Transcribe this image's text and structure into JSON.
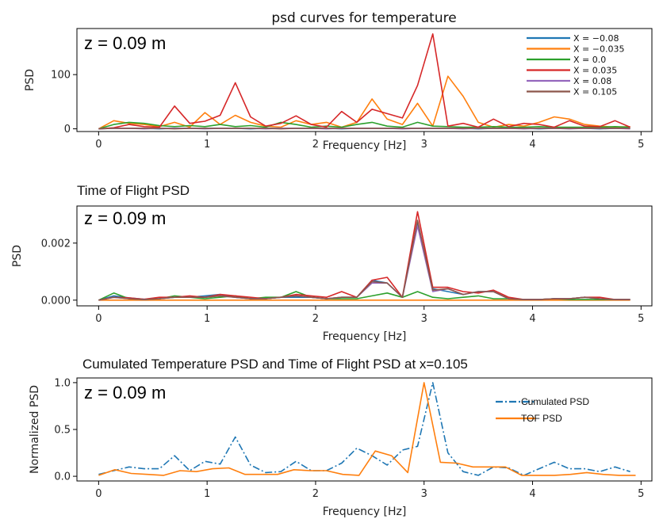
{
  "chart_data": [
    {
      "type": "line",
      "title": "psd curves for temperature",
      "annotation": "z = 0.09 m",
      "xlabel": "Frequency [Hz]",
      "ylabel": "PSD",
      "xlim": [
        -0.2,
        5.1
      ],
      "ylim": [
        -5,
        185
      ],
      "xticks": [
        0,
        1,
        2,
        3,
        4,
        5
      ],
      "yticks": [
        0,
        100
      ],
      "legend_position": "top-right",
      "x": [
        0,
        0.14,
        0.28,
        0.42,
        0.56,
        0.7,
        0.84,
        0.98,
        1.12,
        1.26,
        1.4,
        1.54,
        1.68,
        1.82,
        1.96,
        2.1,
        2.24,
        2.38,
        2.52,
        2.66,
        2.8,
        2.94,
        3.08,
        3.22,
        3.36,
        3.5,
        3.64,
        3.78,
        3.92,
        4.06,
        4.2,
        4.34,
        4.48,
        4.62,
        4.76,
        4.9
      ],
      "series": [
        {
          "name": "X = −0.08",
          "color": "#1f77b4",
          "values": [
            0,
            1,
            1,
            1,
            0,
            1,
            1,
            1,
            1,
            1,
            0,
            1,
            1,
            1,
            1,
            1,
            0,
            1,
            1,
            1,
            1,
            1,
            1,
            1,
            1,
            0,
            1,
            1,
            1,
            0,
            1,
            1,
            1,
            0,
            1,
            1
          ]
        },
        {
          "name": "X = −0.035",
          "color": "#ff7f0e",
          "values": [
            0,
            15,
            10,
            8,
            4,
            12,
            3,
            30,
            8,
            25,
            12,
            5,
            3,
            15,
            8,
            12,
            3,
            12,
            55,
            18,
            8,
            47,
            5,
            97,
            60,
            12,
            3,
            8,
            5,
            12,
            22,
            18,
            8,
            5,
            3,
            4
          ]
        },
        {
          "name": "X = 0.0",
          "color": "#2ca02c",
          "values": [
            0,
            8,
            12,
            10,
            6,
            4,
            6,
            4,
            8,
            4,
            6,
            3,
            12,
            8,
            3,
            5,
            3,
            8,
            12,
            5,
            3,
            12,
            5,
            4,
            3,
            3,
            4,
            3,
            3,
            4,
            3,
            3,
            3,
            3,
            4,
            3
          ]
        },
        {
          "name": "X = 0.035",
          "color": "#d62728",
          "values": [
            0,
            2,
            8,
            4,
            3,
            42,
            10,
            14,
            25,
            85,
            22,
            5,
            10,
            24,
            8,
            3,
            32,
            12,
            36,
            28,
            20,
            80,
            175,
            5,
            10,
            3,
            18,
            4,
            10,
            8,
            3,
            15,
            5,
            4,
            15,
            3
          ]
        },
        {
          "name": "X = 0.08",
          "color": "#9467bd",
          "values": [
            0,
            1,
            1,
            0,
            1,
            1,
            1,
            0,
            1,
            1,
            1,
            0,
            1,
            1,
            1,
            0,
            1,
            1,
            1,
            1,
            0,
            1,
            1,
            1,
            0,
            1,
            1,
            1,
            0,
            1,
            1,
            0,
            1,
            1,
            1,
            0
          ]
        },
        {
          "name": "X = 0.105",
          "color": "#8c564b",
          "values": [
            0,
            1,
            1,
            1,
            1,
            0,
            1,
            1,
            1,
            1,
            1,
            1,
            0,
            1,
            1,
            1,
            1,
            1,
            1,
            1,
            1,
            1,
            1,
            1,
            1,
            1,
            1,
            1,
            1,
            1,
            1,
            1,
            1,
            1,
            1,
            1
          ]
        }
      ]
    },
    {
      "type": "line",
      "title": "Time of Flight PSD",
      "annotation": "z = 0.09 m",
      "xlabel": "Frequency [Hz]",
      "ylabel": "PSD",
      "xlim": [
        -0.2,
        5.1
      ],
      "ylim": [
        -0.0002,
        0.0033
      ],
      "xticks": [
        0,
        1,
        2,
        3,
        4,
        5
      ],
      "yticks": [
        0.0,
        0.002
      ],
      "ytick_labels": [
        "0.000",
        "0.002"
      ],
      "x": [
        0,
        0.14,
        0.28,
        0.42,
        0.56,
        0.7,
        0.84,
        0.98,
        1.12,
        1.26,
        1.4,
        1.54,
        1.68,
        1.82,
        1.96,
        2.1,
        2.24,
        2.38,
        2.52,
        2.66,
        2.8,
        2.94,
        3.08,
        3.22,
        3.36,
        3.5,
        3.64,
        3.78,
        3.92,
        4.06,
        4.2,
        4.34,
        4.48,
        4.62,
        4.76,
        4.9
      ],
      "series": [
        {
          "color": "#1f77b4",
          "values": [
            0,
            0.00015,
            8e-05,
            3e-05,
            5e-05,
            0.0001,
            0.0001,
            0.00015,
            0.0002,
            0.0001,
            5e-05,
            5e-05,
            0.0001,
            0.0001,
            0.0001,
            5e-05,
            0.0001,
            0.0001,
            0.0007,
            0.0006,
            0.0001,
            0.0027,
            0.0004,
            0.0003,
            0.0002,
            0.0003,
            0.0003,
            5e-05,
            2e-05,
            2e-05,
            5e-05,
            5e-05,
            0.0001,
            5e-05,
            2e-05,
            2e-05
          ]
        },
        {
          "color": "#ff7f0e",
          "values": [
            0,
            0,
            0,
            0,
            0,
            0,
            0,
            0,
            0,
            0,
            0,
            0,
            0,
            0,
            0,
            0,
            0,
            0,
            0,
            0,
            0,
            0,
            0,
            0,
            0,
            0,
            0,
            0,
            0,
            0,
            0,
            0,
            0,
            0,
            0,
            0
          ]
        },
        {
          "color": "#2ca02c",
          "values": [
            0,
            0.00025,
            5e-05,
            2e-05,
            5e-05,
            0.00015,
            0.0001,
            5e-05,
            0.0001,
            0.00015,
            5e-05,
            0.0001,
            0.0001,
            0.0003,
            0.0001,
            5e-05,
            5e-05,
            5e-05,
            0.00015,
            0.00025,
            0.0001,
            0.0003,
            0.0001,
            5e-05,
            0.0001,
            0.00015,
            5e-05,
            5e-05,
            2e-05,
            2e-05,
            5e-05,
            2e-05,
            2e-05,
            2e-05,
            2e-05,
            2e-05
          ]
        },
        {
          "color": "#d62728",
          "values": [
            0,
            0.0001,
            8e-05,
            3e-05,
            0.0001,
            0.0001,
            0.00015,
            0.0001,
            0.0002,
            0.00015,
            0.0001,
            5e-05,
            0.0001,
            0.0002,
            0.00015,
            0.0001,
            0.0003,
            0.0001,
            0.0007,
            0.0008,
            0.0001,
            0.0031,
            0.00045,
            0.00045,
            0.0003,
            0.00025,
            0.00035,
            0.0001,
            2e-05,
            2e-05,
            5e-05,
            5e-05,
            0.0001,
            0.0001,
            2e-05,
            2e-05
          ]
        },
        {
          "color": "#9467bd",
          "values": [
            0,
            0.0001,
            5e-05,
            2e-05,
            5e-05,
            0.0001,
            0.0001,
            0.0001,
            0.00015,
            0.0001,
            5e-05,
            5e-05,
            0.0001,
            0.00015,
            0.0001,
            5e-05,
            0.0001,
            0.0001,
            0.0006,
            0.0006,
            0.0001,
            0.0026,
            0.0003,
            0.0004,
            0.0002,
            0.0003,
            0.0003,
            5e-05,
            2e-05,
            2e-05,
            5e-05,
            5e-05,
            0.0001,
            5e-05,
            2e-05,
            2e-05
          ]
        },
        {
          "color": "#8c564b",
          "values": [
            0,
            0.0001,
            5e-05,
            2e-05,
            5e-05,
            0.0001,
            0.0001,
            0.0001,
            0.00015,
            0.0001,
            5e-05,
            5e-05,
            0.0001,
            0.00015,
            0.0001,
            5e-05,
            0.0001,
            0.0001,
            0.00065,
            0.0006,
            0.0001,
            0.0028,
            0.00035,
            0.0004,
            0.0002,
            0.0003,
            0.0003,
            5e-05,
            2e-05,
            2e-05,
            5e-05,
            5e-05,
            0.0001,
            5e-05,
            2e-05,
            2e-05
          ]
        }
      ]
    },
    {
      "type": "line",
      "title": "Cumulated Temperature PSD and Time of Flight PSD at x=0.105",
      "annotation": "z = 0.09 m",
      "xlabel": "Frequency [Hz]",
      "ylabel": "Normalized PSD",
      "xlim": [
        -0.2,
        5.1
      ],
      "ylim": [
        -0.05,
        1.05
      ],
      "xticks": [
        0,
        1,
        2,
        3,
        4,
        5
      ],
      "yticks": [
        0.0,
        0.5,
        1.0
      ],
      "ytick_labels": [
        "0.0",
        "0.5",
        "1.0"
      ],
      "legend_position": "top-right",
      "series": [
        {
          "name": "Cumulated PSD",
          "color": "#1f77b4",
          "style": "dashdot",
          "x": [
            0,
            0.14,
            0.28,
            0.42,
            0.56,
            0.7,
            0.84,
            0.98,
            1.12,
            1.26,
            1.4,
            1.54,
            1.68,
            1.82,
            1.96,
            2.1,
            2.24,
            2.38,
            2.52,
            2.66,
            2.8,
            2.94,
            3.08,
            3.22,
            3.36,
            3.5,
            3.64,
            3.78,
            3.92,
            4.06,
            4.2,
            4.34,
            4.48,
            4.62,
            4.76,
            4.9
          ],
          "values": [
            0.02,
            0.06,
            0.1,
            0.08,
            0.08,
            0.22,
            0.06,
            0.16,
            0.13,
            0.42,
            0.12,
            0.04,
            0.05,
            0.16,
            0.06,
            0.06,
            0.14,
            0.3,
            0.22,
            0.12,
            0.28,
            0.32,
            1.0,
            0.25,
            0.05,
            0.01,
            0.1,
            0.09,
            0.01,
            0.08,
            0.15,
            0.08,
            0.08,
            0.05,
            0.1,
            0.05
          ]
        },
        {
          "name": "TOF PSD",
          "color": "#ff7f0e",
          "style": "solid",
          "x": [
            0,
            0.15,
            0.3,
            0.45,
            0.6,
            0.75,
            0.9,
            1.05,
            1.2,
            1.35,
            1.5,
            1.65,
            1.8,
            1.95,
            2.1,
            2.25,
            2.4,
            2.55,
            2.7,
            2.85,
            3.0,
            3.15,
            3.3,
            3.45,
            3.6,
            3.75,
            3.9,
            4.05,
            4.2,
            4.35,
            4.5,
            4.65,
            4.8,
            4.95
          ],
          "values": [
            0.01,
            0.07,
            0.03,
            0.02,
            0.01,
            0.06,
            0.05,
            0.08,
            0.09,
            0.02,
            0.02,
            0.02,
            0.07,
            0.06,
            0.06,
            0.02,
            0.01,
            0.27,
            0.22,
            0.04,
            1.0,
            0.15,
            0.14,
            0.1,
            0.1,
            0.1,
            0.01,
            0.01,
            0.01,
            0.02,
            0.04,
            0.02,
            0.01,
            0.01
          ]
        }
      ]
    }
  ]
}
